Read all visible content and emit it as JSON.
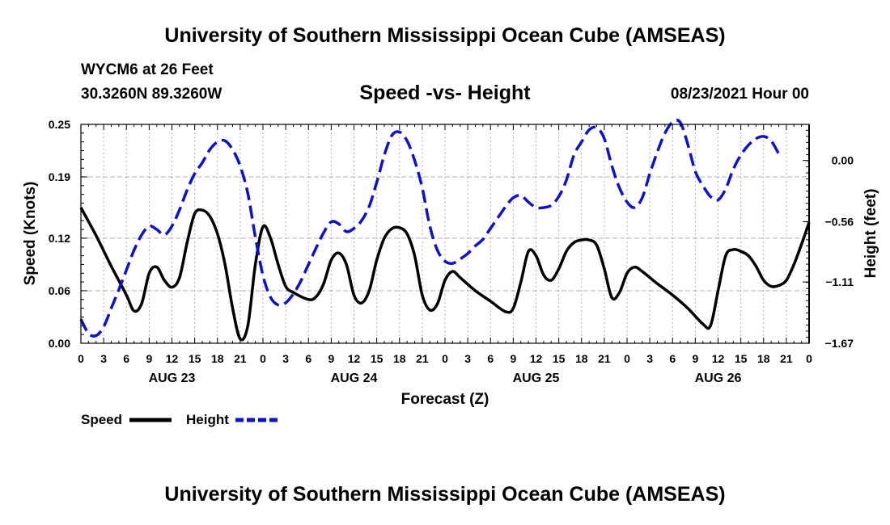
{
  "header": {
    "title": "University of Southern Mississippi Ocean Cube (AMSEAS)",
    "station": "WYCM6 at 26 Feet",
    "coords": "30.3260N  89.3260W",
    "subtitle": "Speed -vs- Height",
    "datetime": "08/23/2021 Hour 00"
  },
  "footer": {
    "title": "University of Southern Mississippi Ocean Cube (AMSEAS)"
  },
  "colors": {
    "speed": "#000000",
    "height": "#1010cc",
    "grid": "#b0b0b0"
  },
  "chart_data": {
    "type": "line",
    "xlabel": "Forecast (Z)",
    "ylabel_left": "Speed (Knots)",
    "ylabel_right": "Height (feet)",
    "x_range": [
      0,
      96
    ],
    "x_ticks": [
      0,
      3,
      6,
      9,
      12,
      15,
      18,
      21,
      24,
      27,
      30,
      33,
      36,
      39,
      42,
      45,
      48,
      51,
      54,
      57,
      60,
      63,
      66,
      69,
      72,
      75,
      78,
      81,
      84,
      87,
      90,
      93,
      96
    ],
    "x_tick_labels": [
      "0",
      "3",
      "6",
      "9",
      "12",
      "15",
      "18",
      "21",
      "0",
      "3",
      "6",
      "9",
      "12",
      "15",
      "18",
      "21",
      "0",
      "3",
      "6",
      "9",
      "12",
      "15",
      "18",
      "21",
      "0",
      "3",
      "6",
      "9",
      "12",
      "15",
      "18",
      "21",
      "0"
    ],
    "day_labels": [
      {
        "x": 12,
        "label": "AUG 23"
      },
      {
        "x": 36,
        "label": "AUG 24"
      },
      {
        "x": 60,
        "label": "AUG 25"
      },
      {
        "x": 84,
        "label": "AUG 26"
      }
    ],
    "left_axis": {
      "range": [
        0,
        0.25
      ],
      "ticks": [
        0.0,
        0.06,
        0.12,
        0.19,
        0.25
      ],
      "labels": [
        "0.00",
        "0.06",
        "0.12",
        "0.19",
        "0.25"
      ]
    },
    "right_axis": {
      "range": [
        -1.67,
        0.33
      ],
      "ticks": [
        -1.67,
        -1.11,
        -0.56,
        0.0
      ],
      "labels": [
        "−1.67",
        "−1.11",
        "−0.56",
        "0.00"
      ]
    },
    "grid_y": [
      0.06,
      0.12,
      0.19
    ],
    "legend": {
      "position": "bottom-left",
      "speed_label": "Speed",
      "height_label": "Height"
    },
    "series": [
      {
        "name": "Speed",
        "axis": "left",
        "style": "solid",
        "points": [
          [
            0,
            0.155
          ],
          [
            2,
            0.123
          ],
          [
            4,
            0.088
          ],
          [
            6,
            0.055
          ],
          [
            7,
            0.037
          ],
          [
            8,
            0.045
          ],
          [
            9,
            0.08
          ],
          [
            10,
            0.087
          ],
          [
            11,
            0.072
          ],
          [
            12,
            0.064
          ],
          [
            13,
            0.075
          ],
          [
            14,
            0.115
          ],
          [
            15,
            0.148
          ],
          [
            16,
            0.152
          ],
          [
            17,
            0.145
          ],
          [
            18,
            0.125
          ],
          [
            19,
            0.09
          ],
          [
            20,
            0.04
          ],
          [
            21,
            0.005
          ],
          [
            22,
            0.02
          ],
          [
            23,
            0.09
          ],
          [
            24,
            0.133
          ],
          [
            25,
            0.12
          ],
          [
            26,
            0.09
          ],
          [
            27,
            0.065
          ],
          [
            28,
            0.058
          ],
          [
            30,
            0.05
          ],
          [
            31,
            0.053
          ],
          [
            32,
            0.068
          ],
          [
            33,
            0.095
          ],
          [
            34,
            0.103
          ],
          [
            35,
            0.09
          ],
          [
            36,
            0.055
          ],
          [
            37,
            0.046
          ],
          [
            38,
            0.06
          ],
          [
            39,
            0.095
          ],
          [
            40,
            0.12
          ],
          [
            41,
            0.131
          ],
          [
            42,
            0.132
          ],
          [
            43,
            0.125
          ],
          [
            44,
            0.1
          ],
          [
            45,
            0.055
          ],
          [
            46,
            0.038
          ],
          [
            47,
            0.045
          ],
          [
            48,
            0.072
          ],
          [
            49,
            0.082
          ],
          [
            50,
            0.075
          ],
          [
            52,
            0.06
          ],
          [
            54,
            0.048
          ],
          [
            56,
            0.036
          ],
          [
            57,
            0.04
          ],
          [
            58,
            0.07
          ],
          [
            59,
            0.105
          ],
          [
            60,
            0.1
          ],
          [
            61,
            0.078
          ],
          [
            62,
            0.072
          ],
          [
            63,
            0.085
          ],
          [
            64,
            0.105
          ],
          [
            65,
            0.115
          ],
          [
            66,
            0.118
          ],
          [
            67,
            0.118
          ],
          [
            68,
            0.112
          ],
          [
            69,
            0.085
          ],
          [
            70,
            0.052
          ],
          [
            71,
            0.058
          ],
          [
            72,
            0.08
          ],
          [
            73,
            0.087
          ],
          [
            74,
            0.082
          ],
          [
            76,
            0.068
          ],
          [
            78,
            0.055
          ],
          [
            80,
            0.04
          ],
          [
            82,
            0.022
          ],
          [
            83,
            0.02
          ],
          [
            84,
            0.06
          ],
          [
            85,
            0.1
          ],
          [
            86,
            0.107
          ],
          [
            87,
            0.105
          ],
          [
            88,
            0.1
          ],
          [
            89,
            0.088
          ],
          [
            90,
            0.072
          ],
          [
            91,
            0.065
          ],
          [
            92,
            0.066
          ],
          [
            93,
            0.072
          ],
          [
            94,
            0.09
          ],
          [
            95,
            0.113
          ],
          [
            96,
            0.138
          ]
        ]
      },
      {
        "name": "Height",
        "axis": "right",
        "style": "dashed",
        "points": [
          [
            0,
            -1.45
          ],
          [
            1,
            -1.58
          ],
          [
            2,
            -1.6
          ],
          [
            3,
            -1.52
          ],
          [
            4,
            -1.35
          ],
          [
            5,
            -1.18
          ],
          [
            6,
            -1.0
          ],
          [
            7,
            -0.82
          ],
          [
            8,
            -0.68
          ],
          [
            9,
            -0.6
          ],
          [
            10,
            -0.63
          ],
          [
            11,
            -0.68
          ],
          [
            12,
            -0.6
          ],
          [
            13,
            -0.45
          ],
          [
            14,
            -0.27
          ],
          [
            15,
            -0.12
          ],
          [
            16,
            -0.02
          ],
          [
            17,
            0.1
          ],
          [
            18,
            0.17
          ],
          [
            19,
            0.18
          ],
          [
            20,
            0.1
          ],
          [
            21,
            -0.05
          ],
          [
            22,
            -0.3
          ],
          [
            23,
            -0.7
          ],
          [
            24,
            -1.05
          ],
          [
            25,
            -1.25
          ],
          [
            26,
            -1.32
          ],
          [
            27,
            -1.3
          ],
          [
            28,
            -1.22
          ],
          [
            29,
            -1.1
          ],
          [
            30,
            -0.95
          ],
          [
            31,
            -0.8
          ],
          [
            32,
            -0.66
          ],
          [
            33,
            -0.56
          ],
          [
            34,
            -0.58
          ],
          [
            35,
            -0.65
          ],
          [
            36,
            -0.62
          ],
          [
            37,
            -0.55
          ],
          [
            38,
            -0.42
          ],
          [
            39,
            -0.2
          ],
          [
            40,
            0.05
          ],
          [
            41,
            0.23
          ],
          [
            42,
            0.26
          ],
          [
            43,
            0.18
          ],
          [
            44,
            0.0
          ],
          [
            45,
            -0.25
          ],
          [
            46,
            -0.6
          ],
          [
            47,
            -0.82
          ],
          [
            48,
            -0.92
          ],
          [
            49,
            -0.94
          ],
          [
            50,
            -0.9
          ],
          [
            51,
            -0.85
          ],
          [
            52,
            -0.78
          ],
          [
            53,
            -0.72
          ],
          [
            54,
            -0.62
          ],
          [
            55,
            -0.52
          ],
          [
            56,
            -0.42
          ],
          [
            57,
            -0.34
          ],
          [
            58,
            -0.32
          ],
          [
            59,
            -0.38
          ],
          [
            60,
            -0.43
          ],
          [
            61,
            -0.43
          ],
          [
            62,
            -0.41
          ],
          [
            63,
            -0.33
          ],
          [
            64,
            -0.18
          ],
          [
            65,
            0.05
          ],
          [
            66,
            0.17
          ],
          [
            67,
            0.28
          ],
          [
            68,
            0.3
          ],
          [
            69,
            0.2
          ],
          [
            70,
            -0.05
          ],
          [
            71,
            -0.25
          ],
          [
            72,
            -0.38
          ],
          [
            73,
            -0.43
          ],
          [
            74,
            -0.34
          ],
          [
            75,
            -0.12
          ],
          [
            76,
            0.08
          ],
          [
            77,
            0.25
          ],
          [
            78,
            0.35
          ],
          [
            79,
            0.35
          ],
          [
            80,
            0.15
          ],
          [
            81,
            -0.1
          ],
          [
            82,
            -0.23
          ],
          [
            83,
            -0.33
          ],
          [
            84,
            -0.36
          ],
          [
            85,
            -0.26
          ],
          [
            86,
            -0.08
          ],
          [
            87,
            0.05
          ],
          [
            88,
            0.14
          ],
          [
            89,
            0.2
          ],
          [
            90,
            0.22
          ],
          [
            91,
            0.18
          ],
          [
            92,
            0.06
          ]
        ]
      }
    ]
  }
}
